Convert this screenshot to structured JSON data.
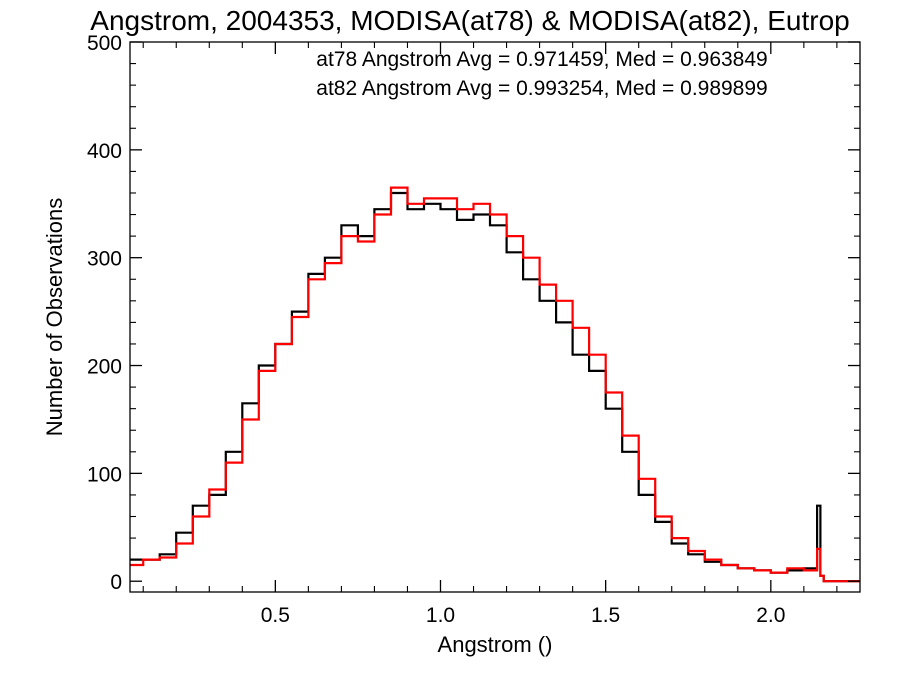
{
  "chart_data": {
    "type": "line",
    "step": true,
    "title": "Angstrom, 2004353, MODISA(at78) & MODISA(at82), Eutrop",
    "xlabel": "Angstrom ()",
    "ylabel": "Number of Observations",
    "xlim": [
      0.06,
      2.27
    ],
    "ylim": [
      -10,
      500
    ],
    "xticks": [
      0.5,
      1.0,
      1.5,
      2.0
    ],
    "xtick_labels": [
      "0.5",
      "1.0",
      "1.5",
      "2.0"
    ],
    "yticks": [
      0,
      100,
      200,
      300,
      400,
      500
    ],
    "ytick_labels": [
      "0",
      "100",
      "200",
      "300",
      "400",
      "500"
    ],
    "grid": false,
    "annotations": [
      {
        "text": "at78 Angstrom Avg = 0.971459, Med = 0.963849",
        "color": "#000000"
      },
      {
        "text": "at82 Angstrom Avg = 0.993254, Med = 0.989899",
        "color": "#ff0000"
      }
    ],
    "series": [
      {
        "color": "#000000",
        "x": [
          0.06,
          0.1,
          0.15,
          0.2,
          0.25,
          0.3,
          0.35,
          0.4,
          0.45,
          0.5,
          0.55,
          0.6,
          0.65,
          0.7,
          0.75,
          0.8,
          0.85,
          0.9,
          0.95,
          1.0,
          1.05,
          1.1,
          1.15,
          1.2,
          1.25,
          1.3,
          1.35,
          1.4,
          1.45,
          1.5,
          1.55,
          1.6,
          1.65,
          1.7,
          1.75,
          1.8,
          1.85,
          1.9,
          1.95,
          2.0,
          2.05,
          2.1,
          2.14,
          2.15,
          2.16,
          2.27
        ],
        "y": [
          20,
          20,
          25,
          45,
          70,
          80,
          120,
          165,
          200,
          220,
          250,
          285,
          300,
          330,
          320,
          345,
          360,
          345,
          350,
          345,
          335,
          340,
          330,
          305,
          280,
          260,
          240,
          210,
          195,
          160,
          120,
          80,
          55,
          35,
          25,
          18,
          15,
          12,
          10,
          8,
          10,
          12,
          70,
          5,
          0,
          0
        ]
      },
      {
        "color": "#ff0000",
        "x": [
          0.06,
          0.1,
          0.15,
          0.2,
          0.25,
          0.3,
          0.35,
          0.4,
          0.45,
          0.5,
          0.55,
          0.6,
          0.65,
          0.7,
          0.75,
          0.8,
          0.85,
          0.9,
          0.95,
          1.0,
          1.05,
          1.1,
          1.15,
          1.2,
          1.25,
          1.3,
          1.35,
          1.4,
          1.45,
          1.5,
          1.55,
          1.6,
          1.65,
          1.7,
          1.75,
          1.8,
          1.85,
          1.9,
          1.95,
          2.0,
          2.05,
          2.1,
          2.14,
          2.15,
          2.16,
          2.27
        ],
        "y": [
          15,
          20,
          22,
          35,
          60,
          85,
          110,
          150,
          195,
          220,
          245,
          280,
          295,
          320,
          315,
          340,
          365,
          350,
          355,
          355,
          345,
          350,
          340,
          320,
          300,
          275,
          260,
          235,
          210,
          175,
          135,
          95,
          60,
          40,
          28,
          20,
          15,
          12,
          10,
          8,
          12,
          10,
          30,
          5,
          0,
          0
        ]
      }
    ]
  }
}
